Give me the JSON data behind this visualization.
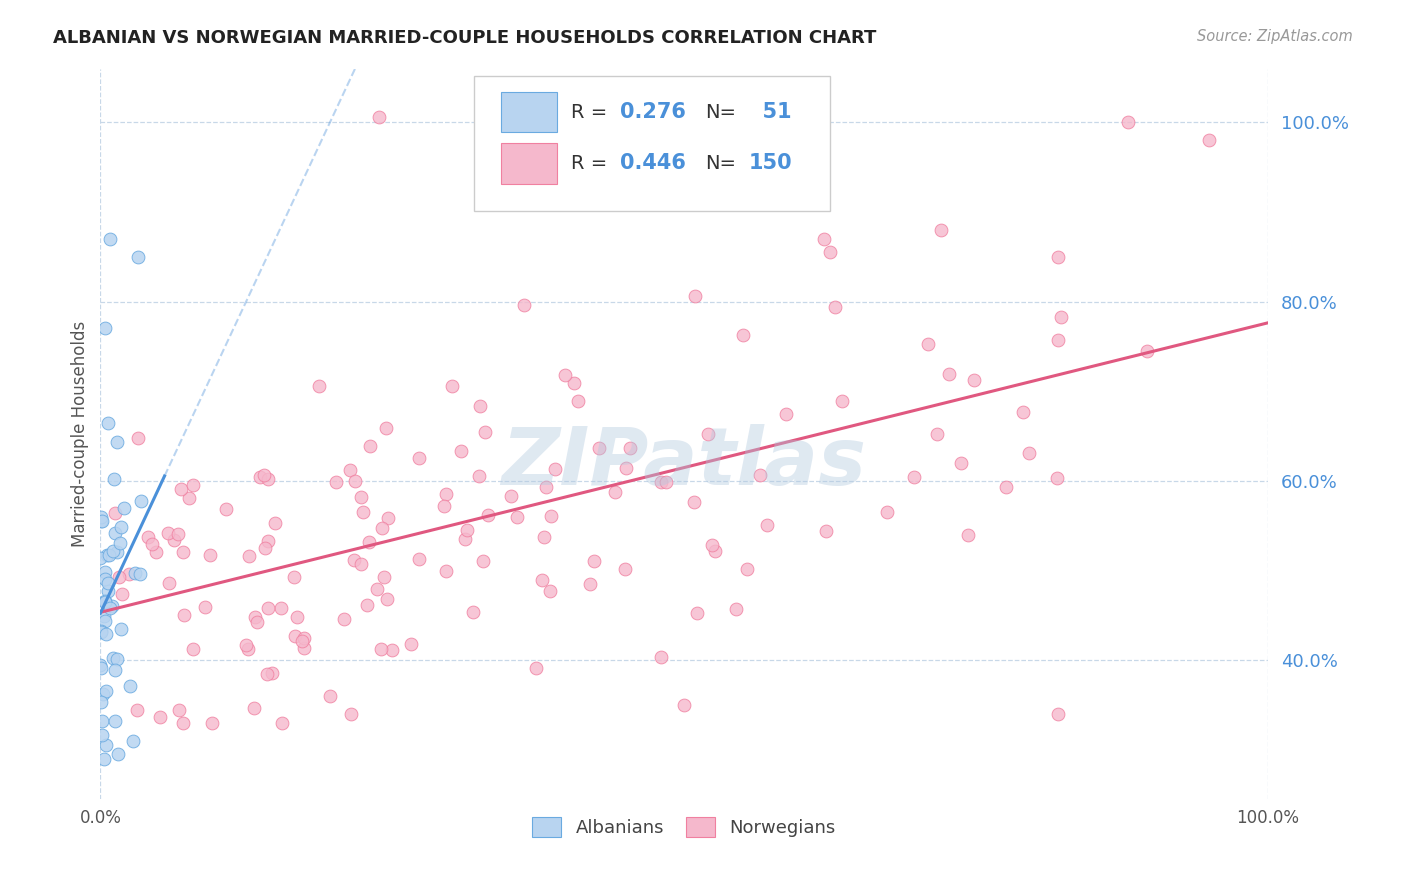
{
  "title": "ALBANIAN VS NORWEGIAN MARRIED-COUPLE HOUSEHOLDS CORRELATION CHART",
  "source": "Source: ZipAtlas.com",
  "ylabel": "Married-couple Households",
  "ytick_positions": [
    0.4,
    0.6,
    0.8,
    1.0
  ],
  "xmin": 0.0,
  "xmax": 1.0,
  "ymin": 0.245,
  "ymax": 1.06,
  "albanian_R": 0.276,
  "albanian_N": 51,
  "norwegian_R": 0.446,
  "norwegian_N": 150,
  "albanian_fill_color": "#b8d4f0",
  "albanian_edge_color": "#6aaae0",
  "norwegian_fill_color": "#f5b8cc",
  "norwegian_edge_color": "#f080a0",
  "albanian_trend_color": "#4a90d9",
  "norwegian_trend_color": "#e05880",
  "watermark": "ZIPatlas",
  "background_color": "#ffffff",
  "grid_color": "#c8d8e8",
  "title_color": "#222222",
  "source_color": "#999999",
  "axis_label_color": "#555555",
  "right_tick_color": "#4a90d9"
}
